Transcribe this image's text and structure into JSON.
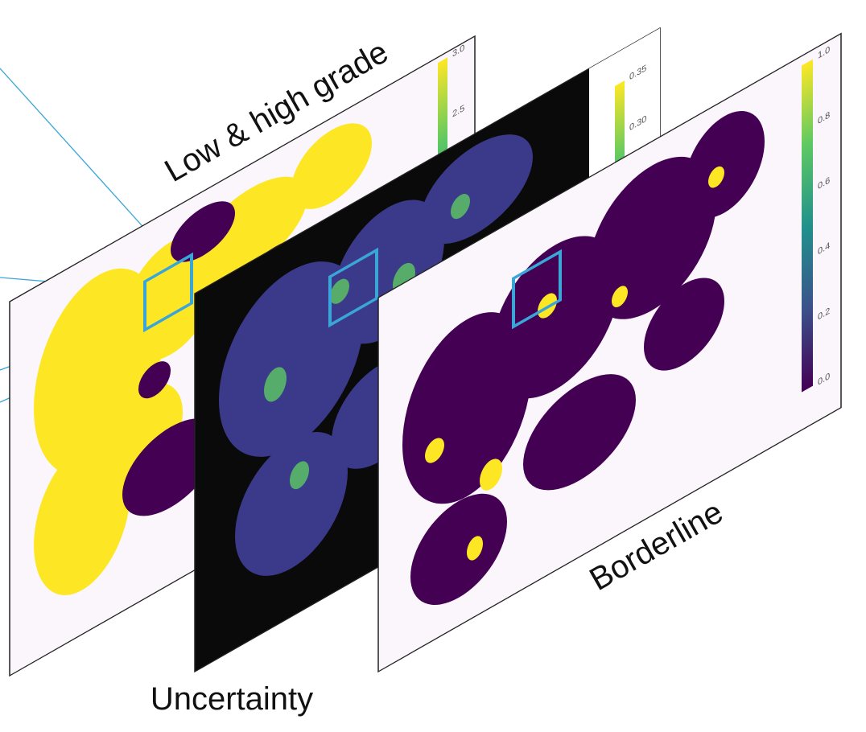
{
  "panels": [
    {
      "title": "Low & high grade",
      "colorbar_ticks": [
        "3.0",
        "2.5"
      ]
    },
    {
      "title": "Uncertainty",
      "colorbar_ticks": [
        "0.35",
        "0.30"
      ]
    },
    {
      "title": "Borderline",
      "colorbar_ticks": [
        "1.0",
        "0.8",
        "0.6",
        "0.4",
        "0.2",
        "0.0"
      ]
    }
  ]
}
